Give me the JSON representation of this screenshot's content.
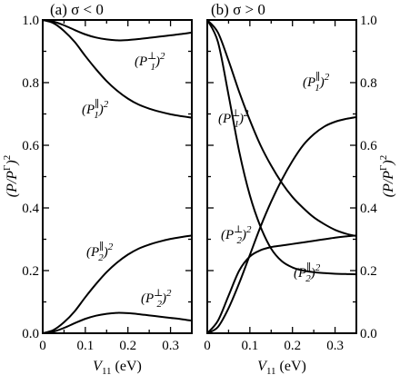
{
  "ytick_labels": [
    "0.0",
    "0.2",
    "0.4",
    "0.6",
    "0.8",
    "1.0"
  ],
  "xtick_labels": [
    "0",
    "0.1",
    "0.2",
    "0.3"
  ],
  "ylabel": "(P/P^Γ)^2",
  "xlabel": "V11 (eV)",
  "chart_data": [
    {
      "type": "line",
      "title": "(a) σ < 0",
      "xlabel": "V11 (eV)",
      "ylabel": "(P/P^Γ)^2",
      "xlim": [
        0,
        0.35
      ],
      "ylim": [
        0,
        1.0
      ],
      "xticks": [
        0,
        0.1,
        0.2,
        0.3
      ],
      "yticks": [
        0,
        0.2,
        0.4,
        0.6,
        0.8,
        1.0
      ],
      "grid": false,
      "legend": "inline labels",
      "series": [
        {
          "name": "(P1⊥)^2",
          "x": [
            0,
            0.025,
            0.05,
            0.075,
            0.1,
            0.125,
            0.15,
            0.175,
            0.2,
            0.225,
            0.25,
            0.275,
            0.3,
            0.325,
            0.35
          ],
          "values": [
            1.0,
            0.995,
            0.983,
            0.968,
            0.954,
            0.944,
            0.938,
            0.935,
            0.936,
            0.939,
            0.943,
            0.947,
            0.951,
            0.955,
            0.96
          ]
        },
        {
          "name": "(P1∥)^2",
          "x": [
            0,
            0.025,
            0.05,
            0.075,
            0.1,
            0.125,
            0.15,
            0.175,
            0.2,
            0.225,
            0.25,
            0.275,
            0.3,
            0.325,
            0.35
          ],
          "values": [
            1.0,
            0.99,
            0.965,
            0.93,
            0.885,
            0.843,
            0.805,
            0.774,
            0.749,
            0.73,
            0.717,
            0.707,
            0.699,
            0.693,
            0.688
          ]
        },
        {
          "name": "(P2∥)^2",
          "x": [
            0,
            0.025,
            0.05,
            0.075,
            0.1,
            0.125,
            0.15,
            0.175,
            0.2,
            0.225,
            0.25,
            0.275,
            0.3,
            0.325,
            0.35
          ],
          "values": [
            0.0,
            0.01,
            0.035,
            0.07,
            0.115,
            0.157,
            0.195,
            0.226,
            0.251,
            0.27,
            0.283,
            0.293,
            0.301,
            0.307,
            0.312
          ]
        },
        {
          "name": "(P2⊥)^2",
          "x": [
            0,
            0.025,
            0.05,
            0.075,
            0.1,
            0.125,
            0.15,
            0.175,
            0.2,
            0.225,
            0.25,
            0.275,
            0.3,
            0.325,
            0.35
          ],
          "values": [
            0.0,
            0.005,
            0.017,
            0.032,
            0.046,
            0.056,
            0.062,
            0.065,
            0.064,
            0.061,
            0.057,
            0.053,
            0.049,
            0.045,
            0.04
          ]
        }
      ]
    },
    {
      "type": "line",
      "title": "(b) σ > 0",
      "xlabel": "V11 (eV)",
      "ylabel": "(P/P^Γ)^2",
      "xlim": [
        0,
        0.35
      ],
      "ylim": [
        0,
        1.0
      ],
      "xticks": [
        0,
        0.1,
        0.2,
        0.3
      ],
      "yticks": [
        0,
        0.2,
        0.4,
        0.6,
        0.8,
        1.0
      ],
      "grid": false,
      "legend": "inline labels",
      "series": [
        {
          "name": "(P1∥)^2",
          "x": [
            0,
            0.025,
            0.05,
            0.075,
            0.1,
            0.125,
            0.15,
            0.175,
            0.2,
            0.225,
            0.25,
            0.275,
            0.3,
            0.325,
            0.35
          ],
          "values": [
            1.0,
            0.96,
            0.87,
            0.77,
            0.68,
            0.6,
            0.535,
            0.48,
            0.435,
            0.4,
            0.37,
            0.348,
            0.33,
            0.318,
            0.31
          ]
        },
        {
          "name": "(P1⊥)^2",
          "x": [
            0,
            0.025,
            0.05,
            0.075,
            0.1,
            0.125,
            0.15,
            0.175,
            0.2,
            0.225,
            0.25,
            0.275,
            0.3,
            0.325,
            0.35
          ],
          "values": [
            1.0,
            0.93,
            0.76,
            0.58,
            0.44,
            0.34,
            0.27,
            0.23,
            0.21,
            0.2,
            0.195,
            0.192,
            0.19,
            0.189,
            0.188
          ]
        },
        {
          "name": "(P2⊥)^2",
          "x": [
            0,
            0.025,
            0.05,
            0.075,
            0.1,
            0.125,
            0.15,
            0.175,
            0.2,
            0.225,
            0.25,
            0.275,
            0.3,
            0.325,
            0.35
          ],
          "values": [
            0.0,
            0.02,
            0.08,
            0.16,
            0.25,
            0.34,
            0.42,
            0.49,
            0.55,
            0.6,
            0.635,
            0.66,
            0.675,
            0.684,
            0.69
          ]
        },
        {
          "name": "(P2∥)^2",
          "x": [
            0,
            0.025,
            0.05,
            0.075,
            0.1,
            0.125,
            0.15,
            0.175,
            0.2,
            0.225,
            0.25,
            0.275,
            0.3,
            0.325,
            0.35
          ],
          "values": [
            0.0,
            0.04,
            0.12,
            0.2,
            0.245,
            0.265,
            0.275,
            0.28,
            0.285,
            0.29,
            0.295,
            0.3,
            0.305,
            0.309,
            0.312
          ]
        }
      ]
    }
  ]
}
